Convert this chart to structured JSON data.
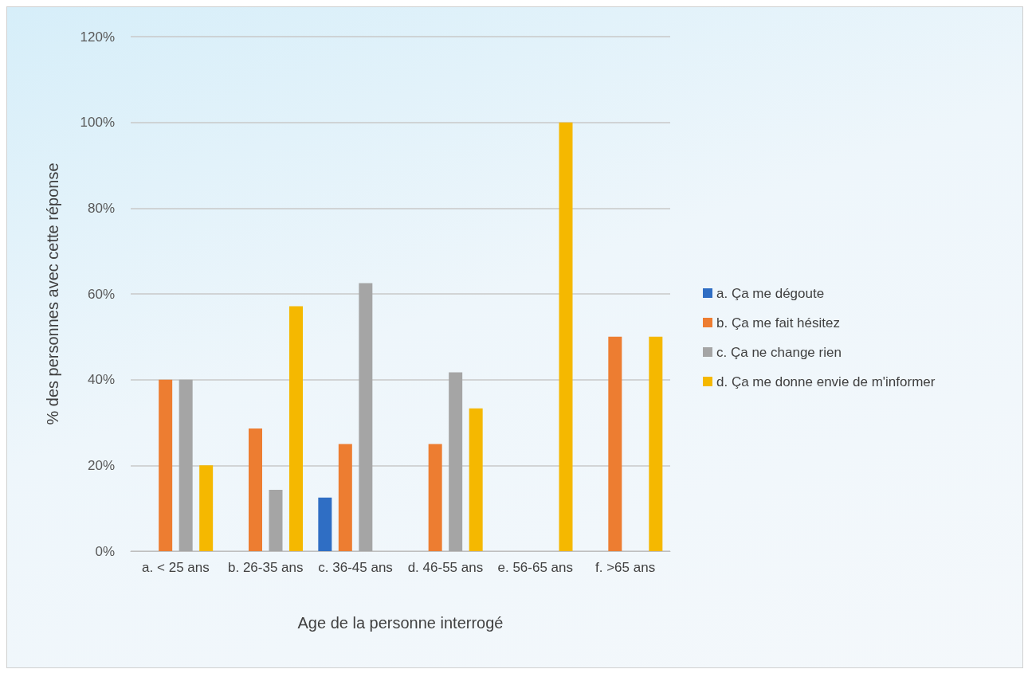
{
  "chart_data": {
    "type": "bar",
    "xlabel": "Age de la personne interrogé",
    "ylabel": "% des personnes avec cette réponse",
    "categories": [
      "a. < 25 ans",
      "b. 26-35 ans",
      "c. 36-45 ans",
      "d. 46-55 ans",
      "e. 56-65 ans",
      "f. >65 ans"
    ],
    "series": [
      {
        "name": "a. Ça me dégoute",
        "color": "#2f6ec4",
        "values": [
          0,
          0,
          12.5,
          0,
          0,
          0
        ]
      },
      {
        "name": "b. Ça me fait hésitez",
        "color": "#ed7d31",
        "values": [
          40,
          28.6,
          25,
          25,
          0,
          50
        ]
      },
      {
        "name": "c. Ça ne change rien",
        "color": "#a5a5a5",
        "values": [
          40,
          14.3,
          62.5,
          41.7,
          0,
          0
        ]
      },
      {
        "name": "d. Ça me donne envie de m'informer",
        "color": "#f5b800",
        "values": [
          20,
          57.1,
          0,
          33.3,
          100,
          50
        ]
      }
    ],
    "ylim": [
      0,
      120
    ],
    "yticks": [
      {
        "value": 0,
        "label": "0%"
      },
      {
        "value": 20,
        "label": "20%"
      },
      {
        "value": 40,
        "label": "40%"
      },
      {
        "value": 60,
        "label": "60%"
      },
      {
        "value": 80,
        "label": "80%"
      },
      {
        "value": 100,
        "label": "100%"
      },
      {
        "value": 120,
        "label": "120%"
      }
    ],
    "grid": "y",
    "legend": "right"
  }
}
